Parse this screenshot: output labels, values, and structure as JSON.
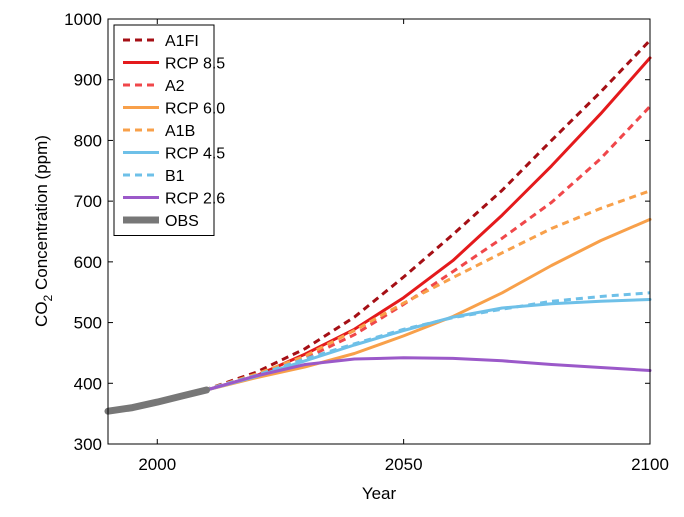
{
  "chart_data": {
    "type": "line",
    "xlabel": "Year",
    "ylabel": {
      "prefix": "CO",
      "subscript": "2",
      "suffix": " Concentration (ppm)"
    },
    "xlim": [
      1990,
      2100
    ],
    "ylim": [
      300,
      1000
    ],
    "xticks": [
      2000,
      2050,
      2100
    ],
    "yticks": [
      300,
      400,
      500,
      600,
      700,
      800,
      900,
      1000
    ],
    "xtick_labels": [
      "2000",
      "2050",
      "2100"
    ],
    "ytick_labels": [
      "300",
      "400",
      "500",
      "600",
      "700",
      "800",
      "900",
      "1000"
    ],
    "grid": false,
    "legend_position": "top-left",
    "series": [
      {
        "name": "A1FI",
        "color": "#a50f15",
        "dash": "dashed",
        "x": [
          2000,
          2010,
          2020,
          2030,
          2040,
          2050,
          2060,
          2070,
          2080,
          2090,
          2100
        ],
        "y": [
          369,
          390,
          418,
          457,
          509,
          575,
          645,
          718,
          800,
          880,
          965
        ]
      },
      {
        "name": "RCP 8.5",
        "color": "#e41a1c",
        "dash": "solid",
        "x": [
          2000,
          2010,
          2020,
          2030,
          2040,
          2050,
          2060,
          2070,
          2080,
          2090,
          2100
        ],
        "y": [
          369,
          389,
          412,
          448,
          489,
          541,
          602,
          677,
          758,
          844,
          936
        ]
      },
      {
        "name": "A2",
        "color": "#f0474a",
        "dash": "dashed",
        "x": [
          2000,
          2010,
          2020,
          2030,
          2040,
          2050,
          2060,
          2070,
          2080,
          2090,
          2100
        ],
        "y": [
          369,
          390,
          412,
          441,
          480,
          530,
          584,
          639,
          698,
          770,
          856
        ]
      },
      {
        "name": "RCP 6.0",
        "color": "#f8a04a",
        "dash": "solid",
        "x": [
          2000,
          2010,
          2020,
          2030,
          2040,
          2050,
          2060,
          2070,
          2080,
          2090,
          2100
        ],
        "y": [
          369,
          389,
          409,
          427,
          449,
          478,
          510,
          549,
          594,
          635,
          670
        ]
      },
      {
        "name": "A1B",
        "color": "#f8a04a",
        "dash": "dashed",
        "x": [
          2000,
          2010,
          2020,
          2030,
          2040,
          2050,
          2060,
          2070,
          2080,
          2090,
          2100
        ],
        "y": [
          369,
          390,
          415,
          445,
          487,
          532,
          574,
          615,
          655,
          688,
          717
        ]
      },
      {
        "name": "RCP 4.5",
        "color": "#6ec0e8",
        "dash": "solid",
        "x": [
          2000,
          2010,
          2020,
          2030,
          2040,
          2050,
          2060,
          2070,
          2080,
          2090,
          2100
        ],
        "y": [
          369,
          389,
          411,
          437,
          463,
          487,
          509,
          524,
          531,
          535,
          538
        ]
      },
      {
        "name": "B1",
        "color": "#6ec0e8",
        "dash": "dashed",
        "x": [
          2000,
          2010,
          2020,
          2030,
          2040,
          2050,
          2060,
          2070,
          2080,
          2090,
          2100
        ],
        "y": [
          369,
          390,
          413,
          440,
          465,
          489,
          508,
          522,
          535,
          543,
          549
        ]
      },
      {
        "name": "RCP 2.6",
        "color": "#9b59c9",
        "dash": "solid",
        "x": [
          2000,
          2010,
          2020,
          2030,
          2040,
          2050,
          2060,
          2070,
          2080,
          2090,
          2100
        ],
        "y": [
          369,
          389,
          412,
          431,
          440,
          442,
          441,
          437,
          431,
          426,
          421
        ]
      },
      {
        "name": "OBS",
        "color": "#777777",
        "dash": "thick",
        "x": [
          1990,
          1995,
          2000,
          2005,
          2010
        ],
        "y": [
          354,
          360,
          369,
          379,
          389
        ]
      }
    ]
  }
}
